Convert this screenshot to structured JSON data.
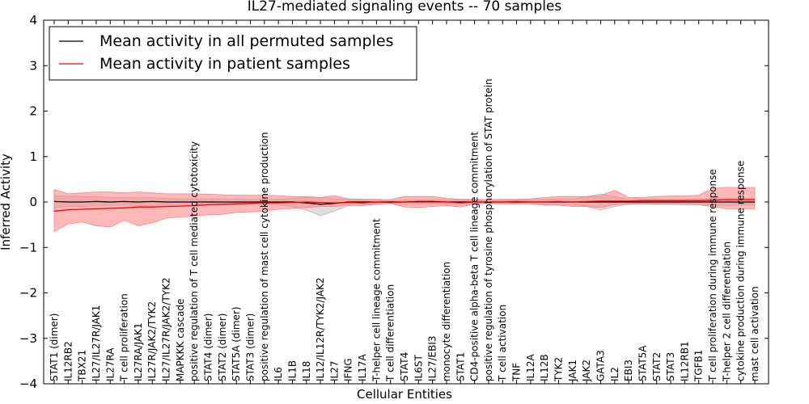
{
  "chart_data": {
    "type": "line",
    "title": "IL27-mediated signaling events -- 70 samples",
    "xlabel": "Cellular Entities",
    "ylabel": "Inferred Activity",
    "ylim": [
      -4,
      4
    ],
    "yticks": [
      -4,
      -3,
      -2,
      -1,
      0,
      1,
      2,
      3,
      4
    ],
    "ytick_labels": [
      "−4",
      "−3",
      "−2",
      "−1",
      "0",
      "1",
      "2",
      "3",
      "4"
    ],
    "grid": false,
    "legend_position": "top-left",
    "categories": [
      "STAT1 (dimer)",
      "IL12RB2",
      "TBX21",
      "IL27/IL27R/JAK1",
      "IL27RA",
      "T cell proliferation",
      "IL27RA/JAK1",
      "IL27R/JAK2/TYK2",
      "IL27/IL27R/JAK2/TYK2",
      "MAPKKK cascade",
      "positive regulation of T cell mediated cytotoxicity",
      "STAT4 (dimer)",
      "STAT2 (dimer)",
      "STAT5A (dimer)",
      "STAT3 (dimer)",
      "positive regulation of mast cell cytokine production",
      "IL6",
      "IL1B",
      "IL18",
      "IL12/IL12R/TYK2/JAK2",
      "IL27",
      "IFNG",
      "IL17A",
      "T-helper cell lineage commitment",
      "T cell differentiation",
      "STAT4",
      "IL6ST",
      "IL27/EBI3",
      "monocyte differentiation",
      "STAT1",
      "CD4-positive alpha-beta T cell lineage commitment",
      "positive regulation of tyrosine phosphorylation of STAT protein",
      "T cell activation",
      "TNF",
      "IL12A",
      "IL12B",
      "TYK2",
      "JAK1",
      "JAK2",
      "GATA3",
      "IL2",
      "EBI3",
      "STAT5A",
      "STAT2",
      "STAT3",
      "IL12RB1",
      "TGFB1",
      "T cell proliferation during immune response",
      "T-helper 2 cell differentiation",
      "cytokine production during immune response",
      "mast cell activation"
    ],
    "series": [
      {
        "name": "Mean activity in all permuted samples",
        "color": "#000000",
        "band_color": "#bbbbbb",
        "values": [
          0.01,
          0.0,
          0.0,
          0.01,
          0.0,
          0.01,
          0.0,
          0.01,
          0.0,
          0.0,
          0.0,
          0.0,
          0.0,
          0.0,
          0.0,
          0.0,
          0.0,
          0.0,
          -0.02,
          -0.05,
          -0.03,
          0.0,
          0.0,
          0.0,
          0.0,
          0.0,
          0.01,
          0.01,
          0.0,
          0.0,
          0.0,
          0.0,
          0.0,
          0.0,
          0.0,
          0.0,
          0.0,
          0.0,
          0.0,
          0.0,
          0.0,
          0.0,
          0.0,
          0.0,
          0.0,
          0.0,
          0.0,
          0.0,
          0.0,
          0.0,
          0.0
        ],
        "lower": [
          -0.12,
          -0.1,
          -0.1,
          -0.08,
          -0.08,
          -0.07,
          -0.08,
          -0.08,
          -0.06,
          -0.06,
          -0.06,
          -0.06,
          -0.06,
          -0.06,
          -0.05,
          -0.06,
          -0.07,
          -0.1,
          -0.18,
          -0.3,
          -0.2,
          -0.08,
          -0.07,
          -0.05,
          -0.02,
          -0.05,
          -0.04,
          -0.04,
          -0.05,
          -0.04,
          -0.03,
          -0.02,
          -0.03,
          -0.03,
          -0.04,
          -0.06,
          -0.06,
          -0.05,
          -0.1,
          -0.18,
          -0.1,
          -0.05,
          -0.05,
          -0.05,
          -0.05,
          -0.06,
          -0.06,
          -0.07,
          -0.08,
          -0.07,
          -0.07
        ],
        "upper": [
          0.14,
          0.13,
          0.12,
          0.12,
          0.1,
          0.1,
          0.09,
          0.1,
          0.08,
          0.07,
          0.07,
          0.07,
          0.07,
          0.06,
          0.06,
          0.06,
          0.06,
          0.08,
          0.1,
          0.1,
          0.07,
          0.06,
          0.05,
          0.04,
          0.02,
          0.05,
          0.05,
          0.05,
          0.05,
          0.05,
          0.04,
          0.03,
          0.04,
          0.04,
          0.05,
          0.06,
          0.07,
          0.06,
          0.12,
          0.18,
          0.12,
          0.06,
          0.06,
          0.06,
          0.06,
          0.06,
          0.07,
          0.08,
          0.09,
          0.08,
          0.08
        ]
      },
      {
        "name": "Mean activity in patient samples",
        "color": "#ff0000",
        "band_color": "#ff8080",
        "values": [
          -0.2,
          -0.17,
          -0.16,
          -0.15,
          -0.14,
          -0.13,
          -0.11,
          -0.11,
          -0.1,
          -0.09,
          -0.08,
          -0.06,
          -0.05,
          -0.04,
          -0.03,
          -0.02,
          -0.02,
          -0.01,
          0.0,
          -0.01,
          -0.02,
          -0.01,
          -0.02,
          0.0,
          -0.01,
          0.0,
          0.0,
          0.0,
          0.0,
          -0.02,
          0.0,
          0.0,
          0.0,
          0.01,
          0.0,
          0.0,
          0.01,
          0.0,
          0.01,
          0.02,
          0.02,
          0.02,
          0.03,
          0.03,
          0.03,
          0.03,
          0.03,
          0.04,
          0.05,
          0.05,
          0.05
        ],
        "lower": [
          -0.65,
          -0.48,
          -0.44,
          -0.52,
          -0.55,
          -0.4,
          -0.52,
          -0.46,
          -0.35,
          -0.33,
          -0.31,
          -0.28,
          -0.27,
          -0.23,
          -0.22,
          -0.2,
          -0.16,
          -0.14,
          -0.12,
          -0.1,
          -0.1,
          -0.07,
          -0.08,
          -0.05,
          -0.03,
          -0.11,
          -0.12,
          -0.1,
          -0.08,
          -0.11,
          -0.04,
          -0.03,
          -0.04,
          -0.04,
          -0.04,
          -0.07,
          -0.07,
          -0.1,
          -0.1,
          -0.12,
          -0.06,
          -0.04,
          -0.03,
          -0.04,
          -0.04,
          -0.04,
          -0.06,
          -0.1,
          -0.15,
          -0.15,
          -0.15
        ],
        "upper": [
          0.27,
          0.18,
          0.2,
          0.22,
          0.22,
          0.2,
          0.22,
          0.2,
          0.18,
          0.18,
          0.18,
          0.17,
          0.16,
          0.15,
          0.15,
          0.15,
          0.14,
          0.12,
          0.12,
          0.1,
          0.14,
          0.07,
          0.06,
          0.06,
          0.05,
          0.12,
          0.12,
          0.12,
          0.08,
          0.06,
          0.06,
          0.05,
          0.06,
          0.06,
          0.07,
          0.1,
          0.12,
          0.12,
          0.12,
          0.14,
          0.26,
          0.1,
          0.1,
          0.12,
          0.13,
          0.13,
          0.15,
          0.3,
          0.32,
          0.32,
          0.32
        ]
      }
    ]
  }
}
